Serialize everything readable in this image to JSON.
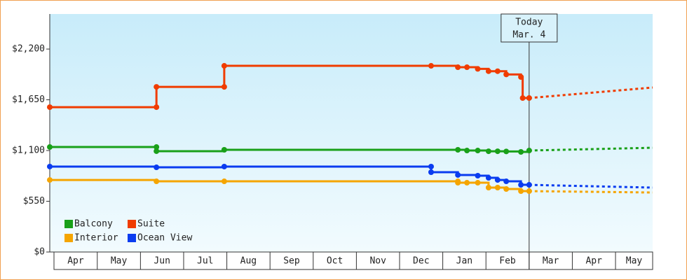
{
  "chart_data": {
    "type": "step-line",
    "categories": [
      "Apr",
      "May",
      "Jun",
      "Jul",
      "Aug",
      "Sep",
      "Oct",
      "Nov",
      "Dec",
      "Jan",
      "Feb",
      "Mar",
      "Apr",
      "May"
    ],
    "xlim": [
      -0.1,
      13.86
    ],
    "ylim": [
      0,
      2580
    ],
    "yticks": [
      {
        "value": 0,
        "label": "$0"
      },
      {
        "value": 550,
        "label": "$550"
      },
      {
        "value": 1100,
        "label": "$1,100"
      },
      {
        "value": 1650,
        "label": "$1,650"
      },
      {
        "value": 2200,
        "label": "$2,200"
      }
    ],
    "annotation": {
      "lines": [
        "Today",
        "Mar. 4"
      ],
      "x": 11.0
    },
    "series": [
      {
        "name": "Suite",
        "color": "#f03c00",
        "x": [
          -0.1,
          2.37,
          2.37,
          3.94,
          3.94,
          8.73,
          9.35,
          9.56,
          9.81,
          10.06,
          10.27,
          10.47,
          10.81,
          10.85,
          11.0
        ],
        "values": [
          1570,
          1570,
          1790,
          1790,
          2018,
          2018,
          2003,
          2003,
          1985,
          1960,
          1960,
          1925,
          1897,
          1669,
          1669
        ],
        "forecast_x": [
          11.0,
          13.86
        ],
        "forecast_values": [
          1669,
          1783
        ]
      },
      {
        "name": "Balcony",
        "color": "#19a019",
        "x": [
          -0.1,
          2.37,
          2.37,
          3.94,
          9.35,
          9.56,
          9.81,
          10.06,
          10.27,
          10.47,
          10.81,
          11.0
        ],
        "values": [
          1138,
          1138,
          1093,
          1108,
          1108,
          1100,
          1100,
          1092,
          1092,
          1090,
          1085,
          1100
        ],
        "forecast_x": [
          11.0,
          13.86
        ],
        "forecast_values": [
          1100,
          1130
        ]
      },
      {
        "name": "Ocean View",
        "color": "#0a3cf0",
        "x": [
          -0.1,
          2.37,
          3.94,
          8.73,
          8.73,
          9.35,
          9.81,
          10.06,
          10.27,
          10.47,
          10.81,
          11.0
        ],
        "values": [
          926,
          918,
          926,
          926,
          865,
          835,
          827,
          804,
          781,
          766,
          728,
          728
        ],
        "forecast_x": [
          11.0,
          13.86
        ],
        "forecast_values": [
          728,
          698
        ]
      },
      {
        "name": "Interior",
        "color": "#f5a500",
        "x": [
          -0.1,
          2.37,
          3.94,
          9.35,
          9.35,
          9.56,
          9.81,
          10.06,
          10.27,
          10.47,
          10.81,
          11.0
        ],
        "values": [
          781,
          766,
          766,
          766,
          751,
          751,
          751,
          698,
          698,
          683,
          660,
          660
        ],
        "forecast_x": [
          11.0,
          13.86
        ],
        "forecast_values": [
          660,
          645
        ]
      }
    ],
    "legend_order": [
      1,
      0,
      3,
      2
    ]
  }
}
